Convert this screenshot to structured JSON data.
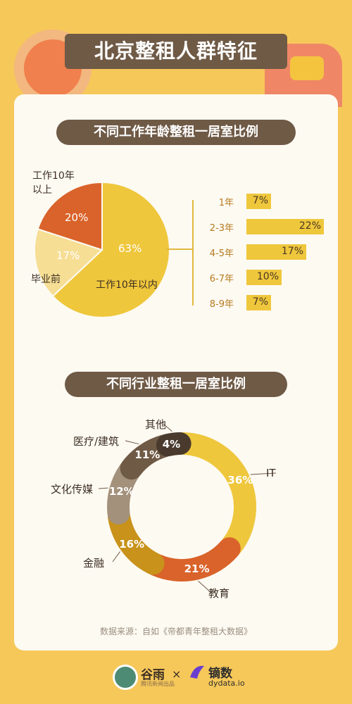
{
  "page": {
    "title": "北京整租人群特征",
    "source": "数据来源：自如《帝都青年整租大数据》"
  },
  "footer": {
    "logo_left": "谷雨",
    "logo_left_sub": "腾讯新闻出品",
    "times": "×",
    "logo_right": "镝数",
    "logo_right_sub": "dydata.io"
  },
  "colors": {
    "background": "#f6c85a",
    "banner": "#6f5a46",
    "card": "#fdfaf2",
    "yellow": "#efc73c",
    "light_yellow": "#f6de95",
    "orange": "#d9632a",
    "gold": "#c8921b",
    "taupe": "#a3917c",
    "brown": "#6f5a46",
    "dark_brown": "#4a3a2d"
  },
  "chart_data": [
    {
      "type": "pie",
      "title": "不同工作年龄整租一居室比例",
      "labels": [
        "工作10年以内",
        "毕业前",
        "工作10年以上"
      ],
      "values": [
        63,
        17,
        20
      ],
      "value_labels": [
        "63%",
        "17%",
        "20%"
      ],
      "label_lines": [
        [
          "工作10年以内"
        ],
        [
          "毕业前"
        ],
        [
          "工作10年",
          "以上"
        ]
      ],
      "colors": [
        "#efc73c",
        "#f6de95",
        "#d9632a"
      ]
    },
    {
      "type": "bar",
      "title": "",
      "categories": [
        "1年",
        "2-3年",
        "4-5年",
        "6-7年",
        "8-9年"
      ],
      "values": [
        7,
        22,
        17,
        10,
        7
      ],
      "value_labels": [
        "7%",
        "22%",
        "17%",
        "10%",
        "7%"
      ],
      "color": "#efc73c"
    },
    {
      "type": "pie",
      "title": "不同行业整租一居室比例",
      "labels": [
        "IT",
        "教育",
        "金融",
        "文化传媒",
        "医疗/建筑",
        "其他"
      ],
      "values": [
        36,
        21,
        16,
        12,
        11,
        4
      ],
      "value_labels": [
        "36%",
        "21%",
        "16%",
        "12%",
        "11%",
        "4%"
      ],
      "colors": [
        "#efc73c",
        "#d9632a",
        "#c8921b",
        "#a3917c",
        "#6f5a46",
        "#4a3a2d"
      ]
    }
  ]
}
